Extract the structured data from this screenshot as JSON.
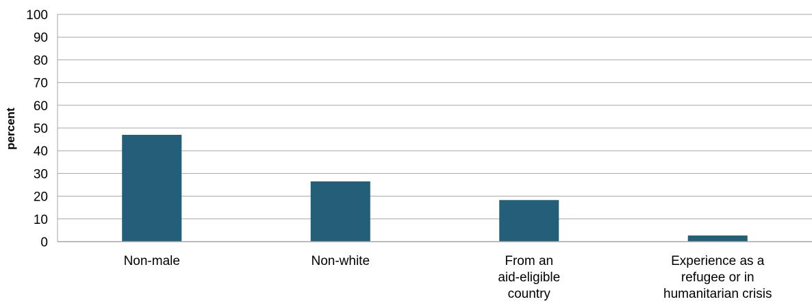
{
  "chart_data": {
    "type": "bar",
    "categories": [
      [
        "Non-male"
      ],
      [
        "Non-white"
      ],
      [
        "From an",
        "aid-eligible",
        "country"
      ],
      [
        "Experience as a",
        "refugee or in",
        "humanitarian crisis"
      ]
    ],
    "values": [
      47,
      26.5,
      18.3,
      2.7
    ],
    "ylabel": "percent",
    "ylim": [
      0,
      100
    ],
    "yticks": [
      "0",
      "10",
      "20",
      "30",
      "40",
      "50",
      "60",
      "70",
      "80",
      "90",
      "100"
    ],
    "grid": true,
    "bar_color": "#235f78",
    "grid_color": "#a6a6a6",
    "axis_color": "#a6a6a6"
  }
}
